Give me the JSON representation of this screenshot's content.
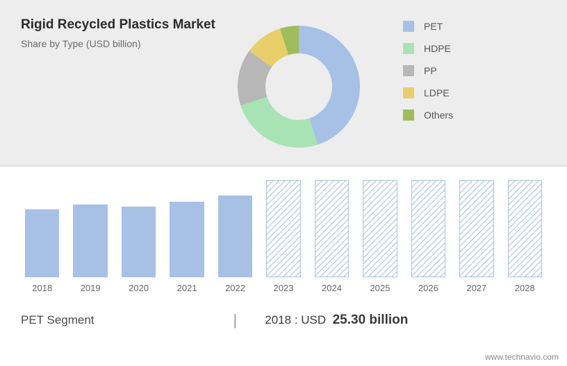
{
  "header": {
    "title": "Rigid Recycled Plastics Market",
    "subtitle": "Share by Type (USD billion)"
  },
  "donut": {
    "type": "donut",
    "inner_radius": 48,
    "outer_radius": 88,
    "background_color": "#ededed",
    "slices": [
      {
        "label": "PET",
        "value": 45,
        "color": "#a7c0e6"
      },
      {
        "label": "HDPE",
        "value": 25,
        "color": "#a8e3b5"
      },
      {
        "label": "PP",
        "value": 15,
        "color": "#b7b7b7"
      },
      {
        "label": "LDPE",
        "value": 10,
        "color": "#e9cf6a"
      },
      {
        "label": "Others",
        "value": 5,
        "color": "#9fbd5a"
      }
    ]
  },
  "legend": [
    {
      "label": "PET",
      "color": "#a7c0e6"
    },
    {
      "label": "HDPE",
      "color": "#a8e3b5"
    },
    {
      "label": "PP",
      "color": "#b7b7b7"
    },
    {
      "label": "LDPE",
      "color": "#e9cf6a"
    },
    {
      "label": "Others",
      "color": "#9fbd5a"
    }
  ],
  "bar_chart": {
    "type": "bar",
    "solid_color": "#a7c0e6",
    "hatched_color": "#a7c0e6",
    "hatched_bg": "#ffffff",
    "bars": [
      {
        "year": "2018",
        "height_pct": 70,
        "style": "solid"
      },
      {
        "year": "2019",
        "height_pct": 75,
        "style": "solid"
      },
      {
        "year": "2020",
        "height_pct": 73,
        "style": "solid"
      },
      {
        "year": "2021",
        "height_pct": 78,
        "style": "solid"
      },
      {
        "year": "2022",
        "height_pct": 84,
        "style": "solid"
      },
      {
        "year": "2023",
        "height_pct": 100,
        "style": "hatched"
      },
      {
        "year": "2024",
        "height_pct": 100,
        "style": "hatched"
      },
      {
        "year": "2025",
        "height_pct": 100,
        "style": "hatched"
      },
      {
        "year": "2026",
        "height_pct": 100,
        "style": "hatched"
      },
      {
        "year": "2027",
        "height_pct": 100,
        "style": "hatched"
      },
      {
        "year": "2028",
        "height_pct": 100,
        "style": "hatched"
      }
    ]
  },
  "footer": {
    "segment_label": "PET Segment",
    "pipe": "|",
    "year_prefix": "2018 : USD",
    "value": "25.30 billion"
  },
  "watermark": "www.technavio.com"
}
